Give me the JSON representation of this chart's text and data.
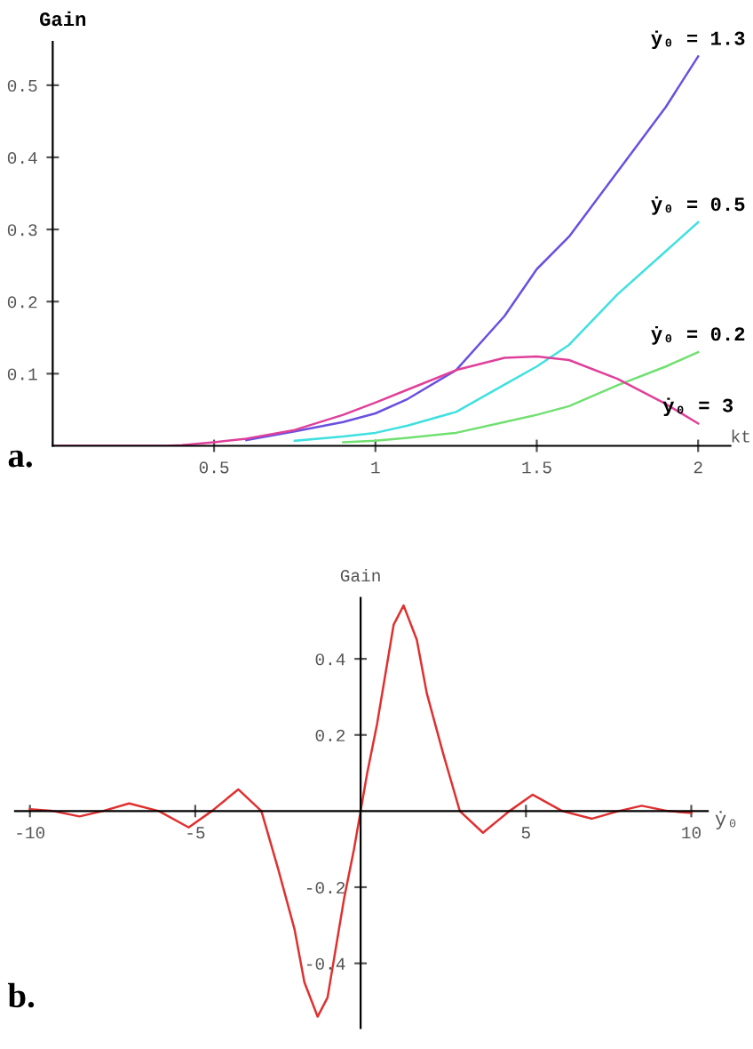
{
  "chart_data": [
    {
      "type": "line",
      "xlabel": "kt",
      "ylabel": "Gain",
      "annotations": [
        "a."
      ],
      "xlim": [
        0,
        2.1
      ],
      "ylim": [
        0,
        0.56
      ],
      "xticks": [
        0.5,
        1,
        1.5,
        2
      ],
      "yticks": [
        0.1,
        0.2,
        0.3,
        0.4,
        0.5
      ],
      "grid": false,
      "legend": false,
      "marker": "none",
      "line_style": "solid",
      "x": [
        0,
        0.35,
        0.4,
        0.5,
        0.6,
        0.75,
        0.9,
        1,
        1.1,
        1.25,
        1.4,
        1.5,
        1.6,
        1.75,
        1.9,
        2
      ],
      "series": [
        {
          "name": "ẏ₀ = 1.3",
          "color": "#6a50e0",
          "x": [
            0.6,
            0.75,
            0.9,
            1,
            1.1,
            1.25,
            1.4,
            1.5,
            1.6,
            1.75,
            1.9,
            2
          ],
          "values": [
            0.008,
            0.02,
            0.033,
            0.045,
            0.065,
            0.105,
            0.18,
            0.245,
            0.29,
            0.38,
            0.47,
            0.54
          ]
        },
        {
          "name": "ẏ₀ = 0.5",
          "color": "#40e0e0",
          "x": [
            0.75,
            0.9,
            1,
            1.1,
            1.25,
            1.4,
            1.5,
            1.6,
            1.75,
            1.9,
            2
          ],
          "values": [
            0.007,
            0.013,
            0.018,
            0.028,
            0.047,
            0.085,
            0.11,
            0.14,
            0.21,
            0.27,
            0.31
          ]
        },
        {
          "name": "ẏ₀ = 0.2",
          "color": "#70e070",
          "x": [
            0.9,
            1,
            1.1,
            1.25,
            1.4,
            1.5,
            1.6,
            1.75,
            1.9,
            2
          ],
          "values": [
            0.005,
            0.007,
            0.011,
            0.018,
            0.033,
            0.043,
            0.055,
            0.084,
            0.11,
            0.13
          ]
        },
        {
          "name": "ẏ₀ = 3",
          "color": "#e0409a",
          "values": [
            0,
            0,
            0.001,
            0.005,
            0.01,
            0.022,
            0.043,
            0.06,
            0.078,
            0.105,
            0.122,
            0.124,
            0.119,
            0.093,
            0.058,
            0.031
          ]
        }
      ]
    },
    {
      "type": "line",
      "xlabel": "ẏ₀",
      "ylabel": "Gain",
      "annotations": [
        "b."
      ],
      "xlim": [
        -10.45,
        10.5
      ],
      "ylim": [
        -0.57,
        0.56
      ],
      "xticks": [
        -10,
        -5,
        5,
        10
      ],
      "yticks": [
        -0.4,
        -0.2,
        0.2,
        0.4
      ],
      "grid": false,
      "legend": false,
      "marker": "none",
      "line_style": "solid",
      "x": [
        -10,
        -9.3,
        -8.5,
        -7.8,
        -7,
        -6.1,
        -5.2,
        -4.5,
        -3.7,
        -3,
        -2.5,
        -2,
        -1.7,
        -1.3,
        -1,
        -0.5,
        -0.2,
        0,
        0.2,
        0.5,
        1,
        1.3,
        1.7,
        2,
        2.5,
        3,
        3.7,
        4.5,
        5.2,
        6.1,
        7,
        7.8,
        8.5,
        9.3,
        10
      ],
      "series": [
        {
          "color": "#e03030",
          "values": [
            0.005,
            0,
            -0.014,
            0,
            0.02,
            0,
            -0.043,
            0,
            0.057,
            0,
            -0.15,
            -0.31,
            -0.45,
            -0.54,
            -0.49,
            -0.23,
            -0.1,
            0,
            0.1,
            0.23,
            0.49,
            0.54,
            0.45,
            0.31,
            0.15,
            0,
            -0.057,
            0,
            0.043,
            0,
            -0.02,
            0,
            0.014,
            0,
            -0.005
          ]
        }
      ]
    }
  ]
}
